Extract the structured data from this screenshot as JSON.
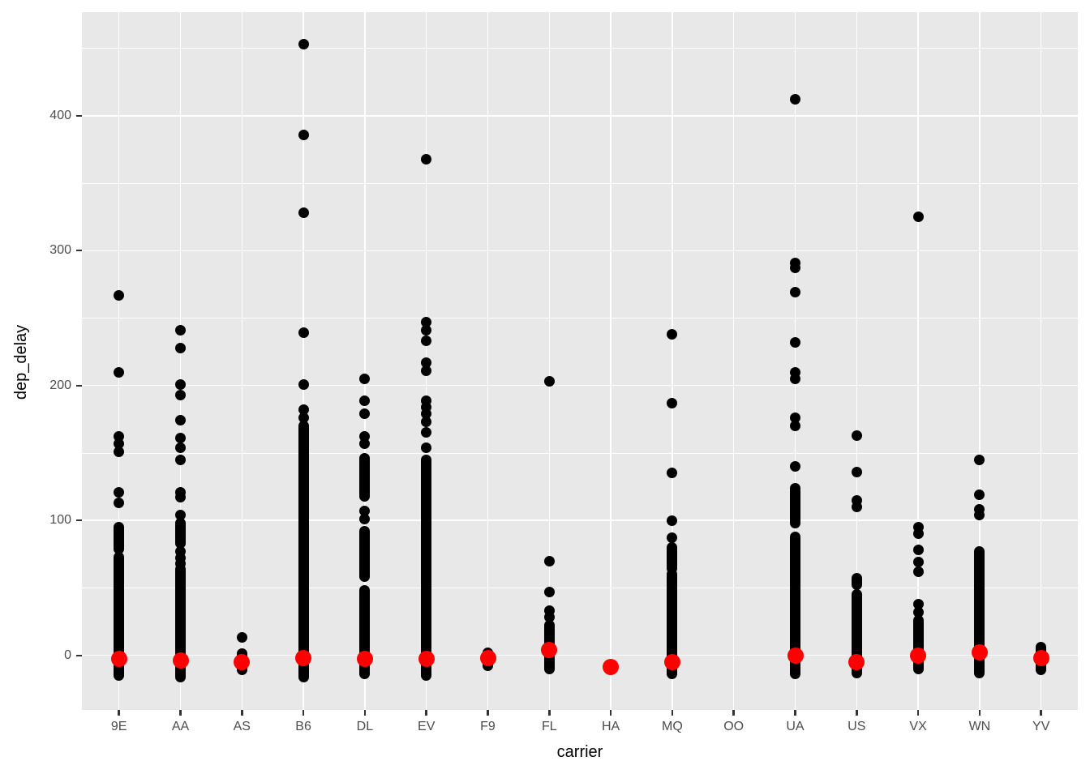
{
  "chart_data": {
    "type": "scatter",
    "title": "",
    "xlabel": "carrier",
    "ylabel": "dep_delay",
    "x_categories": [
      "9E",
      "AA",
      "AS",
      "B6",
      "DL",
      "EV",
      "F9",
      "FL",
      "HA",
      "MQ",
      "OO",
      "UA",
      "US",
      "VX",
      "WN",
      "YV"
    ],
    "y_axis": {
      "tick_labels": [
        "0",
        "100",
        "200",
        "300",
        "400"
      ],
      "ticks": [
        0,
        100,
        200,
        300,
        400
      ],
      "minor_ticks": [
        50,
        150,
        250,
        350,
        450
      ],
      "range": [
        -41,
        477
      ]
    },
    "grid": "on",
    "legend": "none",
    "point_color": "#000000",
    "summary_point_color": "#FF0000",
    "carriers": [
      {
        "carrier": "9E",
        "dense_ranges": [
          [
            -15,
            73
          ],
          [
            79,
            95
          ]
        ],
        "outliers": [
          113,
          121,
          151,
          157,
          162,
          210,
          267
        ],
        "median": -3
      },
      {
        "carrier": "AA",
        "dense_ranges": [
          [
            -16,
            64
          ],
          [
            83,
            98
          ]
        ],
        "outliers": [
          68,
          72,
          77,
          104,
          117,
          121,
          145,
          154,
          161,
          174,
          193,
          201,
          228,
          241
        ],
        "median": -4
      },
      {
        "carrier": "AS",
        "dense_ranges": [
          [
            -11,
            1
          ]
        ],
        "outliers": [
          13
        ],
        "median": -5
      },
      {
        "carrier": "B6",
        "dense_ranges": [
          [
            -16,
            170
          ]
        ],
        "outliers": [
          176,
          182,
          201,
          239,
          328,
          386,
          453
        ],
        "median": -2
      },
      {
        "carrier": "DL",
        "dense_ranges": [
          [
            -14,
            48
          ],
          [
            58,
            92
          ],
          [
            118,
            146
          ]
        ],
        "outliers": [
          101,
          107,
          157,
          162,
          179,
          189,
          205
        ],
        "median": -3
      },
      {
        "carrier": "EV",
        "dense_ranges": [
          [
            -15,
            145
          ]
        ],
        "outliers": [
          154,
          165,
          173,
          179,
          184,
          189,
          211,
          217,
          233,
          241,
          247,
          368
        ],
        "median": -3
      },
      {
        "carrier": "F9",
        "dense_ranges": [
          [
            -8,
            2
          ]
        ],
        "outliers": [],
        "median": -2
      },
      {
        "carrier": "FL",
        "dense_ranges": [
          [
            -10,
            22
          ]
        ],
        "outliers": [
          28,
          33,
          47,
          70,
          203
        ],
        "median": 4
      },
      {
        "carrier": "HA",
        "dense_ranges": [],
        "outliers": [],
        "median": -9
      },
      {
        "carrier": "MQ",
        "dense_ranges": [
          [
            -14,
            60
          ],
          [
            64,
            80
          ]
        ],
        "outliers": [
          87,
          100,
          135,
          187,
          238
        ],
        "median": -5
      },
      {
        "carrier": "OO",
        "dense_ranges": [],
        "outliers": [],
        "median": null
      },
      {
        "carrier": "UA",
        "dense_ranges": [
          [
            -14,
            88
          ],
          [
            98,
            124
          ]
        ],
        "outliers": [
          140,
          170,
          176,
          205,
          210,
          232,
          269,
          287,
          291,
          412
        ],
        "median": 0
      },
      {
        "carrier": "US",
        "dense_ranges": [
          [
            -13,
            45
          ],
          [
            52,
            57
          ]
        ],
        "outliers": [
          110,
          115,
          136,
          163
        ],
        "median": -5
      },
      {
        "carrier": "VX",
        "dense_ranges": [
          [
            -10,
            26
          ]
        ],
        "outliers": [
          32,
          38,
          62,
          69,
          78,
          90,
          95,
          325
        ],
        "median": 0
      },
      {
        "carrier": "WN",
        "dense_ranges": [
          [
            -13,
            77
          ]
        ],
        "outliers": [
          104,
          108,
          119,
          145
        ],
        "median": 2
      },
      {
        "carrier": "YV",
        "dense_ranges": [
          [
            -11,
            6
          ]
        ],
        "outliers": [],
        "median": -2
      }
    ]
  },
  "style_colors": {
    "panel_background": "#E8E8E8",
    "grid_color": "#FFFFFF",
    "axis_text_color": "#4D4D4D",
    "axis_tick_color": "#333333",
    "title_color": "#000000",
    "page_background": "#FFFFFF"
  }
}
